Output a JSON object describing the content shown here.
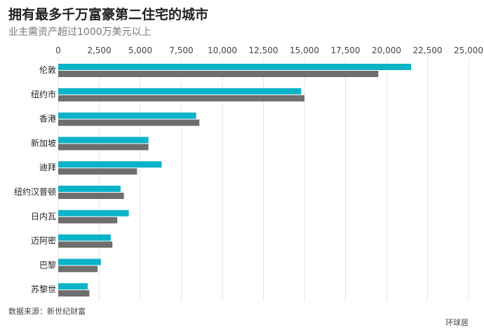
{
  "header": {
    "title": "拥有最多千万富豪第二住宅的城市",
    "subtitle": "业主需资产超过1000万美元以上"
  },
  "footer": {
    "source": "数据来源：新世纪财富",
    "brand": "环球居"
  },
  "colors": {
    "series_a": "#0bb3c8",
    "series_b": "#6e6e6e",
    "grid": "#e4e4e4",
    "tick_text": "#444444"
  },
  "chart_data": {
    "type": "bar",
    "orientation": "horizontal",
    "categories": [
      "伦敦",
      "纽约市",
      "香港",
      "新加坡",
      "迪拜",
      "纽约汉普顿",
      "日内瓦",
      "迈阿密",
      "巴黎",
      "苏黎世"
    ],
    "series": [
      {
        "values": [
          21500,
          14800,
          8400,
          5500,
          6300,
          3800,
          4300,
          3200,
          2600,
          1800
        ]
      },
      {
        "values": [
          19500,
          15000,
          8600,
          5500,
          4800,
          4000,
          3600,
          3300,
          2400,
          1900
        ]
      }
    ],
    "xlim": [
      0,
      25000
    ],
    "x_ticks": [
      "0",
      "2,500",
      "5,000",
      "7,500",
      "10,000",
      "12,500",
      "15,000",
      "17,500",
      "20,000",
      "22,500",
      "25,000"
    ],
    "x_tick_values": [
      0,
      2500,
      5000,
      7500,
      10000,
      12500,
      15000,
      17500,
      20000,
      22500,
      25000
    ],
    "grid": true,
    "x_axis_position": "top"
  }
}
